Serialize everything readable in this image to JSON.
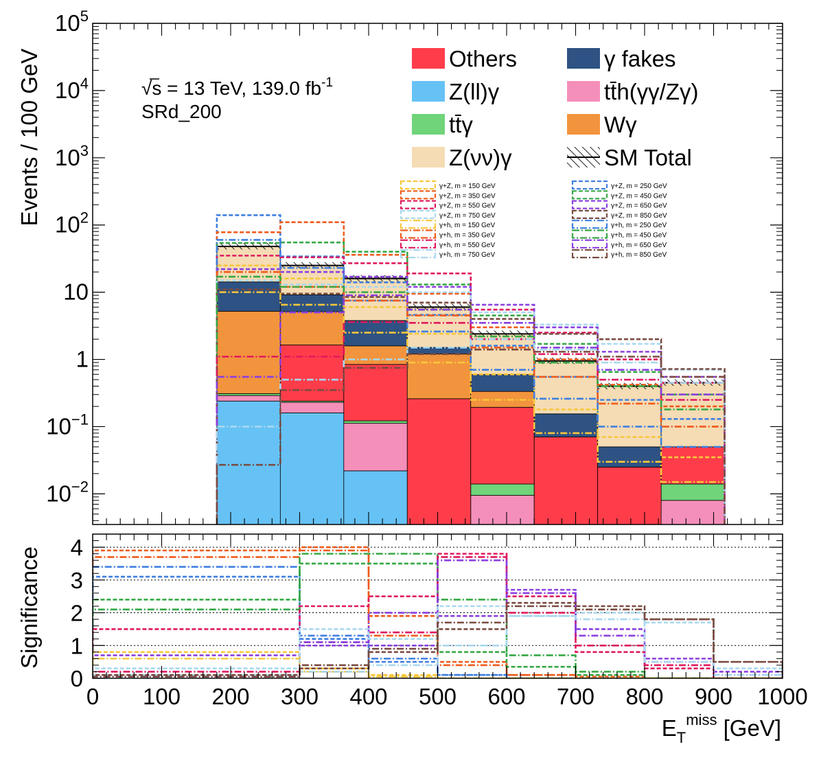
{
  "chart_data": {
    "type": "bar",
    "subtype": "stacked-histogram-with-ratio-panel",
    "top_panel": {
      "ylabel": "Events / 100 GeV",
      "y_scale": "log",
      "ylim": [
        0.0035,
        100000
      ],
      "y_ticks": [
        {
          "value": 100000,
          "label": "10^5"
        },
        {
          "value": 10000,
          "label": "10^4"
        },
        {
          "value": 1000,
          "label": "10^3"
        },
        {
          "value": 100,
          "label": "10^2"
        },
        {
          "value": 10,
          "label": "10"
        },
        {
          "value": 1,
          "label": "1"
        },
        {
          "value": 0.1,
          "label": "10^-1"
        },
        {
          "value": 0.01,
          "label": "10^-2"
        }
      ],
      "bin_edges": [
        180,
        272,
        364,
        456,
        548,
        640,
        732,
        824,
        916
      ],
      "stack_series": [
        {
          "name": "Z(ll)γ",
          "color": "#66c2f5",
          "values": [
            0.24,
            0.16,
            0.022,
            0,
            0,
            0,
            0,
            0
          ]
        },
        {
          "name": "tt̄h(γγ/Zγ)",
          "color": "#f48fba",
          "values": [
            0.05,
            0.07,
            0.09,
            0,
            0.0095,
            0,
            0,
            0.008
          ]
        },
        {
          "name": "tt̄γ",
          "color": "#6fd47a",
          "values": [
            0.02,
            0.01,
            0.01,
            0,
            0.0045,
            0,
            0,
            0.006
          ]
        },
        {
          "name": "Others",
          "color": "#ff3d4a",
          "values": [
            0,
            1.4,
            0.72,
            0.26,
            0.18,
            0.07,
            0.025,
            0.036
          ]
        },
        {
          "name": "Wγ",
          "color": "#f2943d",
          "values": [
            4.9,
            3.5,
            0.75,
            0.95,
            0.14,
            0,
            0,
            0
          ]
        },
        {
          "name": "γ fakes",
          "color": "#2e5283",
          "values": [
            9.0,
            4.0,
            2.2,
            0.3,
            0.26,
            0.085,
            0.025,
            0
          ]
        },
        {
          "name": "Z(νν)γ",
          "color": "#f5dcb4",
          "values": [
            34,
            16,
            12,
            4.5,
            1.8,
            0.8,
            0.35,
            0.4
          ]
        }
      ],
      "sm_total": {
        "name": "SM Total",
        "values": [
          48,
          25,
          16,
          6.0,
          2.4,
          0.95,
          0.4,
          0.45
        ]
      },
      "signal_series": [
        {
          "name": "γ+Z, m = 150 GeV",
          "color": "#f7c73b",
          "dash": "6,3",
          "values": [
            25,
            16,
            6,
            2.4,
            0.6,
            0.18,
            0.07,
            0.035
          ]
        },
        {
          "name": "γ+Z, m = 250 GeV",
          "color": "#3f7fe0",
          "dash": "6,3",
          "values": [
            140,
            34,
            14,
            4.6,
            1.6,
            0.55,
            0.25,
            0.13
          ]
        },
        {
          "name": "γ+Z, m = 350 GeV",
          "color": "#f05a1a",
          "dash": "6,3",
          "values": [
            78,
            110,
            36,
            9.5,
            3.0,
            1.0,
            0.42,
            0.2
          ]
        },
        {
          "name": "γ+Z, m = 450 GeV",
          "color": "#35a845",
          "dash": "6,3",
          "values": [
            54,
            55,
            40,
            13,
            4.5,
            1.7,
            0.65,
            0.3
          ]
        },
        {
          "name": "γ+Z, m = 550 GeV",
          "color": "#e0185e",
          "dash": "6,3",
          "values": [
            35,
            33,
            27,
            19,
            5.5,
            2.5,
            1.0,
            0.45
          ]
        },
        {
          "name": "γ+Z, m = 650 GeV",
          "color": "#8a3fe0",
          "dash": "6,3",
          "values": [
            22,
            20,
            17,
            12,
            6.5,
            3.0,
            1.3,
            0.55
          ]
        },
        {
          "name": "γ+Z, m = 750 GeV",
          "color": "#a8d8f0",
          "dash": "6,3",
          "values": [
            15,
            13,
            12,
            10,
            5.0,
            3.3,
            1.7,
            0.7
          ]
        },
        {
          "name": "γ+Z, m = 850 GeV",
          "color": "#7a4a40",
          "dash": "6,3",
          "values": [
            11,
            9.5,
            8.5,
            7.0,
            4.0,
            2.4,
            2.0,
            0.72
          ]
        },
        {
          "name": "γ+h, m = 150 GeV",
          "color": "#f7c73b",
          "dash": "10,3,2,3",
          "values": [
            10,
            6.5,
            2.5,
            0.9,
            0.25,
            0.08,
            0.03,
            0.015
          ]
        },
        {
          "name": "γ+h, m = 250 GeV",
          "color": "#3f7fe0",
          "dash": "10,3,2,3",
          "values": [
            60,
            23,
            7.5,
            2.6,
            0.7,
            0.26,
            0.1,
            0.05
          ]
        },
        {
          "name": "γ+h, m = 350 GeV",
          "color": "#f05a1a",
          "dash": "10,3,2,3",
          "values": [
            20,
            12,
            7.5,
            4.5,
            1.5,
            0.55,
            0.22,
            0.1
          ]
        },
        {
          "name": "γ+h, m = 450 GeV",
          "color": "#35a845",
          "dash": "10,3,2,3",
          "values": [
            17,
            12,
            10,
            5.5,
            2.2,
            0.9,
            0.4,
            0.18
          ]
        },
        {
          "name": "γ+h, m = 550 GeV",
          "color": "#e0185e",
          "dash": "10,3,2,3",
          "values": [
            1.1,
            1.1,
            3.6,
            3.5,
            2.0,
            1.2,
            0.5,
            0.25
          ]
        },
        {
          "name": "γ+h, m = 650 GeV",
          "color": "#8a3fe0",
          "dash": "10,3,2,3",
          "values": [
            0.55,
            5.0,
            9.0,
            5.5,
            3.5,
            1.5,
            0.7,
            0.3
          ]
        },
        {
          "name": "γ+h, m = 750 GeV",
          "color": "#a8d8f0",
          "dash": "10,3,2,3",
          "values": [
            0.1,
            0.5,
            1.0,
            1.5,
            2.0,
            1.4,
            0.9,
            0.45
          ]
        },
        {
          "name": "γ+h, m = 850 GeV",
          "color": "#7a4a40",
          "dash": "10,3,2,3",
          "values": [
            0.027,
            0.35,
            0.75,
            1.2,
            1.4,
            1.3,
            1.1,
            0.55
          ]
        }
      ],
      "annotations": {
        "energy_lumi": "√s = 13 TeV, 139.0 fb",
        "lumi_exponent": "-1",
        "region": "SRd_200"
      },
      "legend": {
        "placement": "top-right",
        "entries": [
          {
            "label": "Others",
            "color": "#ff3d4a",
            "kind": "fill"
          },
          {
            "label": "γ fakes",
            "color": "#2e5283",
            "kind": "fill"
          },
          {
            "label": "Z(ll)γ",
            "color": "#66c2f5",
            "kind": "fill"
          },
          {
            "label": "tt̄h(γγ/Zγ)",
            "color": "#f48fba",
            "kind": "fill"
          },
          {
            "label": "tt̄γ",
            "color": "#6fd47a",
            "kind": "fill"
          },
          {
            "label": "Wγ",
            "color": "#f2943d",
            "kind": "fill"
          },
          {
            "label": "Z(νν)γ",
            "color": "#f5dcb4",
            "kind": "fill"
          },
          {
            "label": "SM Total",
            "color": "#000000",
            "kind": "hatch"
          }
        ],
        "signal_labels": [
          "γ+Z, m = 150 GeV",
          "γ+Z, m = 250 GeV",
          "γ+Z, m = 350 GeV",
          "γ+Z, m = 450 GeV",
          "γ+Z, m = 550 GeV",
          "γ+Z, m = 650 GeV",
          "γ+Z, m = 750 GeV",
          "γ+Z, m = 850 GeV",
          "γ+h, m = 150 GeV",
          "γ+h, m = 250 GeV",
          "γ+h, m = 350 GeV",
          "γ+h, m = 450 GeV",
          "γ+h, m = 550 GeV",
          "γ+h, m = 650 GeV",
          "γ+h, m = 750 GeV",
          "γ+h, m = 850 GeV"
        ]
      }
    },
    "bottom_panel": {
      "ylabel": "Significance",
      "ylim": [
        0,
        4.4
      ],
      "y_ticks": [
        0,
        1,
        2,
        3,
        4
      ],
      "gridlines": [
        1,
        2,
        3,
        4
      ],
      "bin_edges": [
        0,
        100,
        200,
        300,
        400,
        500,
        600,
        700,
        800,
        900,
        1000
      ],
      "significance_series": [
        {
          "color": "#f05a1a",
          "dash": "6,3",
          "values": [
            3.9,
            3.9,
            3.9,
            4.0,
            1.9,
            0.5,
            0.1,
            0.05,
            0,
            0
          ]
        },
        {
          "color": "#f05a1a",
          "dash": "10,3,2,3",
          "values": [
            3.7,
            3.7,
            3.7,
            3.9,
            1.3,
            0.4,
            0.1,
            0,
            0,
            0
          ]
        },
        {
          "color": "#3f7fe0",
          "dash": "10,3,2,3",
          "values": [
            3.4,
            3.4,
            3.4,
            1.3,
            0.6,
            0.1,
            0,
            0,
            0,
            0
          ]
        },
        {
          "color": "#3f7fe0",
          "dash": "6,3",
          "values": [
            3.1,
            3.1,
            3.1,
            1.2,
            0.5,
            0.1,
            0,
            0,
            0,
            0
          ]
        },
        {
          "color": "#35a845",
          "dash": "6,3",
          "values": [
            2.4,
            2.4,
            2.4,
            3.5,
            3.5,
            0.8,
            0.35,
            0.1,
            0,
            0
          ]
        },
        {
          "color": "#35a845",
          "dash": "10,3,2,3",
          "values": [
            2.1,
            2.1,
            2.1,
            3.8,
            3.8,
            2.4,
            0.7,
            0.2,
            0,
            0
          ]
        },
        {
          "color": "#e0185e",
          "dash": "6,3",
          "values": [
            1.5,
            1.5,
            1.5,
            2.2,
            2.5,
            3.8,
            2.5,
            0.8,
            0.3,
            0
          ]
        },
        {
          "color": "#e0185e",
          "dash": "10,3,2,3",
          "values": [
            0.2,
            0.2,
            0.2,
            1.1,
            1.4,
            3.7,
            2.0,
            1.0,
            0.4,
            0
          ]
        },
        {
          "color": "#8a3fe0",
          "dash": "6,3",
          "values": [
            0.7,
            0.7,
            0.7,
            1.0,
            1.0,
            1.9,
            2.7,
            1.5,
            0.6,
            0.2
          ]
        },
        {
          "color": "#8a3fe0",
          "dash": "10,3,2,3",
          "values": [
            0.05,
            0.05,
            0.05,
            1.1,
            2.0,
            3.6,
            2.6,
            1.3,
            0.5,
            0.1
          ]
        },
        {
          "color": "#f7c73b",
          "dash": "6,3",
          "values": [
            0.8,
            0.8,
            0.8,
            0.3,
            0.1,
            0,
            0,
            0,
            0,
            0
          ]
        },
        {
          "color": "#f7c73b",
          "dash": "10,3,2,3",
          "values": [
            0.6,
            0.6,
            0.6,
            0.2,
            0.05,
            0,
            0,
            0,
            0,
            0
          ]
        },
        {
          "color": "#a8d8f0",
          "dash": "6,3",
          "values": [
            0.3,
            0.3,
            0.3,
            1.5,
            1.2,
            2.2,
            1.9,
            2.0,
            1.7,
            0.3
          ]
        },
        {
          "color": "#a8d8f0",
          "dash": "10,3,2,3",
          "values": [
            0.1,
            0.1,
            0.1,
            0.2,
            0.4,
            1.0,
            1.9,
            1.8,
            0.5,
            0.1
          ]
        },
        {
          "color": "#7a4a40",
          "dash": "6,3",
          "values": [
            0.1,
            0.1,
            0.1,
            0.3,
            0.8,
            1.5,
            2.3,
            2.2,
            1.8,
            0.5
          ]
        },
        {
          "color": "#7a4a40",
          "dash": "10,3,2,3",
          "values": [
            0.05,
            0.05,
            0.05,
            0.4,
            0.9,
            1.7,
            2.2,
            2.1,
            1.8,
            0.5
          ]
        }
      ]
    },
    "xlabel": "E_T^miss [GeV]",
    "xlabel_main": "E",
    "xlabel_sub": "T",
    "xlabel_sup": "miss",
    "xlabel_unit": " [GeV]",
    "xlim": [
      0,
      1000
    ],
    "x_ticks": [
      0,
      100,
      200,
      300,
      400,
      500,
      600,
      700,
      800,
      900,
      1000
    ]
  }
}
